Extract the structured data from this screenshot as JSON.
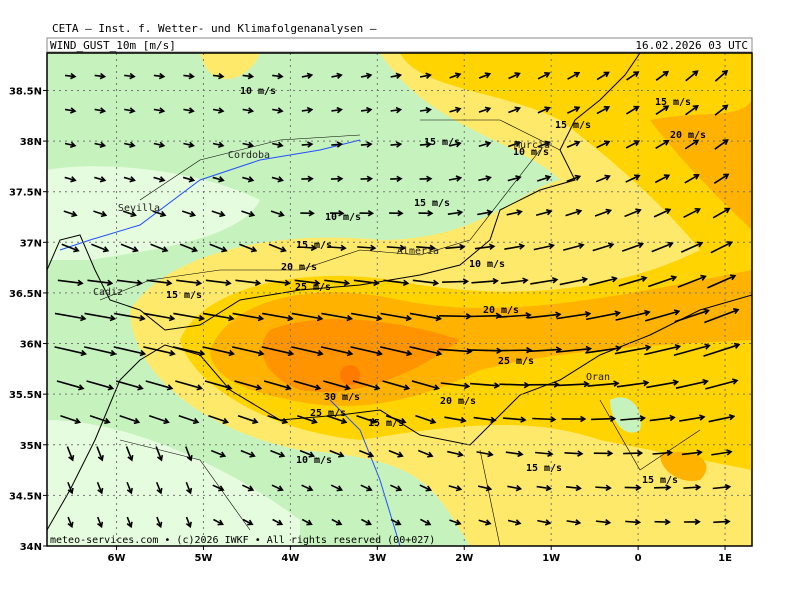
{
  "header": {
    "title": "CETA — Inst. f. Wetter- und Klimafolgenanalysen —",
    "variable": "WIND_GUST_10m [m/s]",
    "valid_time": "16.02.2026 03 UTC"
  },
  "map": {
    "lat_lim": [
      34,
      38.87
    ],
    "lon_lim": [
      -6.8,
      1.31
    ],
    "lat_ticks": [
      {
        "value": 34,
        "label": "34N"
      },
      {
        "value": 34.5,
        "label": "34.5N"
      },
      {
        "value": 35,
        "label": "35N"
      },
      {
        "value": 35.5,
        "label": "35.5N"
      },
      {
        "value": 36,
        "label": "36N"
      },
      {
        "value": 36.5,
        "label": "36.5N"
      },
      {
        "value": 37,
        "label": "37N"
      },
      {
        "value": 37.5,
        "label": "37.5N"
      },
      {
        "value": 38,
        "label": "38N"
      },
      {
        "value": 38.5,
        "label": "38.5N"
      }
    ],
    "lon_ticks": [
      {
        "value": -6,
        "label": "6W"
      },
      {
        "value": -5,
        "label": "5W"
      },
      {
        "value": -4,
        "label": "4W"
      },
      {
        "value": -3,
        "label": "3W"
      },
      {
        "value": -2,
        "label": "2W"
      },
      {
        "value": -1,
        "label": "1W"
      },
      0,
      {
        "value": 1,
        "label": "1E"
      }
    ],
    "cities": [
      "Cordoba",
      "Sevilla",
      "Almeria",
      "Murcia",
      "Cadiz",
      "Oran"
    ],
    "contour_labels": [
      "10 m/s",
      "15 m/s",
      "15 m/s",
      "20 m/s",
      "15 m/s",
      "10 m/s",
      "15 m/s",
      "10 m/s",
      "15 m/s",
      "20 m/s",
      "10 m/s",
      "25 m/s",
      "15 m/s",
      "20 m/s",
      "25 m/s",
      "30 m/s",
      "20 m/s",
      "25 m/s",
      "15 m/s",
      "10 m/s",
      "15 m/s",
      "15 m/s"
    ],
    "footer": "meteo-services.com • (c)2026 IWKF • All rights reserved (00+027)"
  }
}
